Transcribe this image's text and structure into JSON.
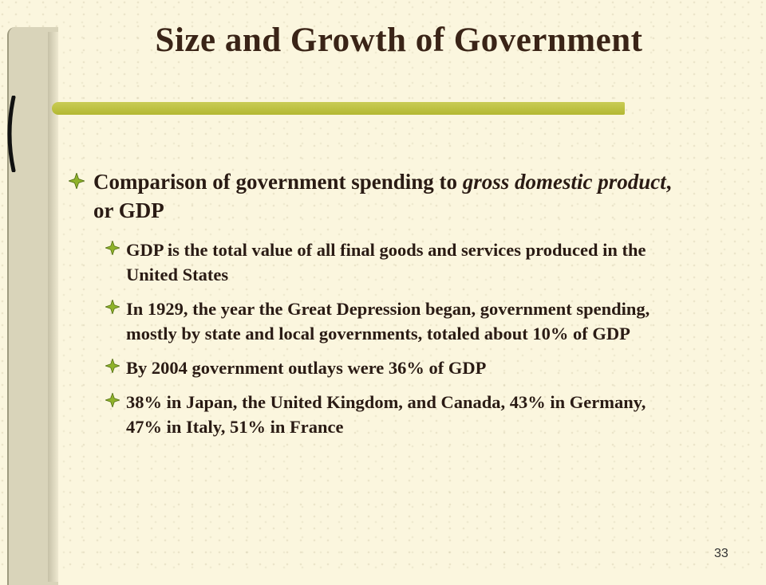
{
  "slide": {
    "title": "Size and Growth of Government",
    "main_bullet": {
      "prefix": "Comparison of government spending to ",
      "italic": "gross domestic product",
      "suffix": ", or GDP"
    },
    "sub_bullets": [
      "GDP is the total value of all final goods and services produced in the United States",
      "In 1929, the year the Great Depression began, government spending, mostly by state and local governments, totaled about 10% of GDP",
      "By 2004 government outlays were 36% of GDP",
      "38% in Japan, the United Kingdom, and Canada, 43% in Germany, 47% in Italy, 51% in France"
    ],
    "page_number": "33"
  },
  "colors": {
    "background": "#fbf6de",
    "title": "#3a2417",
    "bullet_icon": "#8fb22a",
    "rule": "#b3b832"
  },
  "icons": {
    "bullet": "four-point-star-bullet-icon"
  }
}
